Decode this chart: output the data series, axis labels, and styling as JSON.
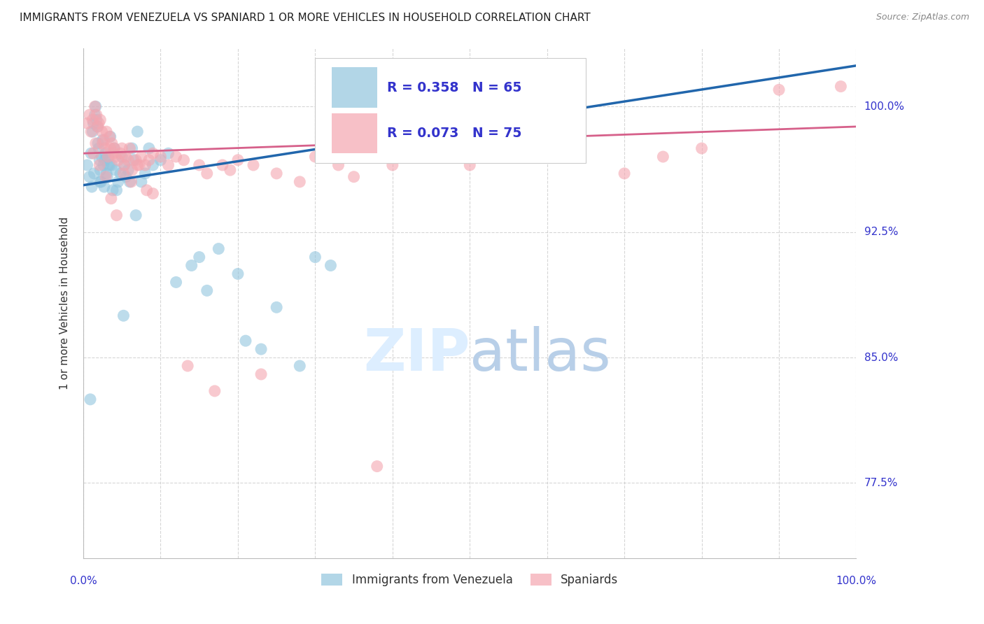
{
  "title": "IMMIGRANTS FROM VENEZUELA VS SPANIARD 1 OR MORE VEHICLES IN HOUSEHOLD CORRELATION CHART",
  "source": "Source: ZipAtlas.com",
  "ylabel": "1 or more Vehicles in Household",
  "ylabel_ticks": [
    77.5,
    85.0,
    92.5,
    100.0
  ],
  "ylabel_tick_labels": [
    "77.5%",
    "85.0%",
    "92.5%",
    "100.0%"
  ],
  "xlim": [
    0.0,
    100.0
  ],
  "ylim": [
    73.0,
    103.5
  ],
  "R_blue": 0.358,
  "N_blue": 65,
  "R_pink": 0.073,
  "N_pink": 75,
  "blue_color": "#92c5de",
  "pink_color": "#f4a6b0",
  "blue_line_color": "#2166ac",
  "pink_line_color": "#d6608a",
  "legend_label_blue": "Immigrants from Venezuela",
  "legend_label_pink": "Spaniards",
  "background_color": "#ffffff",
  "grid_color": "#cccccc",
  "title_color": "#222222",
  "axis_label_color": "#3333cc",
  "watermark_color": "#ddeeff",
  "blue_x": [
    0.5,
    0.8,
    1.0,
    1.2,
    1.3,
    1.5,
    1.6,
    1.7,
    1.8,
    1.9,
    2.0,
    2.1,
    2.2,
    2.3,
    2.4,
    2.5,
    2.6,
    2.7,
    2.8,
    2.9,
    3.0,
    3.1,
    3.2,
    3.3,
    3.5,
    3.7,
    4.0,
    4.2,
    4.5,
    4.8,
    5.0,
    5.3,
    5.5,
    5.8,
    6.0,
    6.3,
    6.5,
    7.0,
    7.5,
    8.0,
    8.5,
    9.0,
    10.0,
    11.0,
    12.0,
    14.0,
    15.0,
    16.0,
    17.5,
    20.0,
    21.0,
    23.0,
    25.0,
    28.0,
    30.0,
    32.0,
    1.4,
    2.15,
    3.4,
    4.3,
    6.8,
    0.9,
    1.1,
    3.8,
    5.2
  ],
  "blue_y": [
    96.5,
    95.8,
    97.2,
    98.5,
    99.0,
    99.5,
    100.0,
    99.2,
    98.8,
    97.8,
    97.5,
    96.8,
    96.2,
    95.5,
    97.0,
    98.0,
    96.5,
    95.2,
    96.8,
    97.2,
    96.0,
    95.8,
    96.5,
    97.0,
    98.2,
    96.5,
    97.5,
    96.2,
    95.5,
    96.0,
    97.0,
    96.5,
    95.8,
    96.2,
    95.5,
    97.5,
    96.8,
    98.5,
    95.5,
    96.0,
    97.5,
    96.5,
    96.8,
    97.2,
    89.5,
    90.5,
    91.0,
    89.0,
    91.5,
    90.0,
    86.0,
    85.5,
    88.0,
    84.5,
    91.0,
    90.5,
    96.0,
    95.5,
    96.5,
    95.0,
    93.5,
    82.5,
    95.2,
    95.0,
    87.5
  ],
  "pink_x": [
    0.5,
    0.8,
    1.0,
    1.2,
    1.5,
    1.7,
    1.9,
    2.0,
    2.2,
    2.4,
    2.5,
    2.7,
    2.8,
    3.0,
    3.2,
    3.4,
    3.5,
    3.7,
    3.9,
    4.0,
    4.2,
    4.5,
    4.8,
    5.0,
    5.3,
    5.5,
    5.8,
    6.0,
    6.3,
    6.8,
    7.0,
    7.5,
    8.0,
    8.5,
    9.0,
    10.0,
    11.0,
    12.0,
    13.0,
    15.0,
    16.0,
    18.0,
    19.0,
    20.0,
    22.0,
    25.0,
    28.0,
    30.0,
    33.0,
    35.0,
    40.0,
    45.0,
    50.0,
    55.0,
    60.0,
    70.0,
    75.0,
    80.0,
    90.0,
    98.0,
    1.3,
    1.6,
    2.1,
    2.9,
    3.6,
    4.3,
    5.2,
    6.2,
    7.2,
    8.2,
    9.0,
    13.5,
    17.0,
    23.0,
    38.0
  ],
  "pink_y": [
    99.0,
    99.5,
    98.5,
    99.2,
    100.0,
    99.5,
    98.8,
    99.0,
    99.2,
    98.5,
    97.8,
    98.0,
    97.5,
    98.5,
    97.0,
    98.2,
    97.5,
    97.8,
    97.2,
    97.5,
    97.0,
    96.8,
    97.2,
    97.5,
    96.5,
    97.0,
    96.8,
    97.5,
    96.2,
    96.8,
    96.5,
    97.0,
    96.5,
    96.8,
    97.2,
    97.0,
    96.5,
    97.0,
    96.8,
    96.5,
    96.0,
    96.5,
    96.2,
    96.8,
    96.5,
    96.0,
    95.5,
    97.0,
    96.5,
    95.8,
    96.5,
    97.0,
    96.5,
    97.2,
    97.5,
    96.0,
    97.0,
    97.5,
    101.0,
    101.2,
    97.2,
    97.8,
    96.5,
    95.8,
    94.5,
    93.5,
    96.0,
    95.5,
    96.5,
    95.0,
    94.8,
    84.5,
    83.0,
    84.0,
    78.5
  ]
}
